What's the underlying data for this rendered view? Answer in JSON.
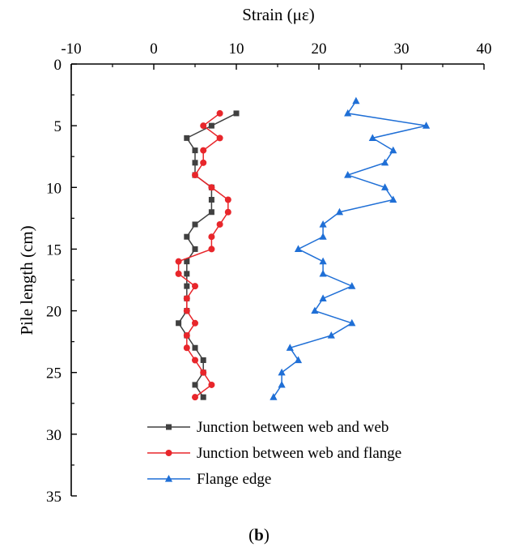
{
  "chart_data": {
    "type": "line",
    "xlabel": "Strain (με)",
    "ylabel": "Pile length (cm)",
    "xlim": [
      -10,
      40
    ],
    "ylim": [
      0,
      35
    ],
    "x_ticks": [
      "-10",
      "0",
      "10",
      "20",
      "30",
      "40"
    ],
    "y_ticks": [
      "0",
      "5",
      "10",
      "15",
      "20",
      "25",
      "30",
      "35"
    ],
    "x_axis_position": "top",
    "y_axis_inverted": true,
    "grid": false,
    "legend_position": "bottom-center",
    "caption_prefix": "(",
    "caption_letter": "b",
    "caption_suffix": ")",
    "series": [
      {
        "name": "Junction between web and web",
        "color": "#404040",
        "marker": "square",
        "points": [
          [
            10,
            4
          ],
          [
            7,
            5
          ],
          [
            4,
            6
          ],
          [
            5,
            7
          ],
          [
            5,
            8
          ],
          [
            5,
            9
          ],
          [
            7,
            10
          ],
          [
            7,
            11
          ],
          [
            7,
            12
          ],
          [
            5,
            13
          ],
          [
            4,
            14
          ],
          [
            5,
            15
          ],
          [
            4,
            16
          ],
          [
            4,
            17
          ],
          [
            4,
            18
          ],
          [
            4,
            19
          ],
          [
            4,
            20
          ],
          [
            3,
            21
          ],
          [
            4,
            22
          ],
          [
            5,
            23
          ],
          [
            6,
            24
          ],
          [
            6,
            25
          ],
          [
            5,
            26
          ],
          [
            6,
            27
          ]
        ]
      },
      {
        "name": "Junction between web and flange",
        "color": "#e8262b",
        "marker": "circle",
        "points": [
          [
            8,
            4
          ],
          [
            6,
            5
          ],
          [
            8,
            6
          ],
          [
            6,
            7
          ],
          [
            6,
            8
          ],
          [
            5,
            9
          ],
          [
            7,
            10
          ],
          [
            9,
            11
          ],
          [
            9,
            12
          ],
          [
            8,
            13
          ],
          [
            7,
            14
          ],
          [
            7,
            15
          ],
          [
            3,
            16
          ],
          [
            3,
            17
          ],
          [
            5,
            18
          ],
          [
            4,
            19
          ],
          [
            4,
            20
          ],
          [
            5,
            21
          ],
          [
            4,
            22
          ],
          [
            4,
            23
          ],
          [
            5,
            24
          ],
          [
            6,
            25
          ],
          [
            7,
            26
          ],
          [
            5,
            27
          ]
        ]
      },
      {
        "name": "Flange edge",
        "color": "#1f6fd6",
        "marker": "triangle",
        "points": [
          [
            24.5,
            3
          ],
          [
            23.5,
            4
          ],
          [
            33,
            5
          ],
          [
            26.5,
            6
          ],
          [
            29,
            7
          ],
          [
            28,
            8
          ],
          [
            23.5,
            9
          ],
          [
            28,
            10
          ],
          [
            29,
            11
          ],
          [
            22.5,
            12
          ],
          [
            20.5,
            13
          ],
          [
            20.5,
            14
          ],
          [
            17.5,
            15
          ],
          [
            20.5,
            16
          ],
          [
            20.5,
            17
          ],
          [
            24,
            18
          ],
          [
            20.5,
            19
          ],
          [
            19.5,
            20
          ],
          [
            24,
            21
          ],
          [
            21.5,
            22
          ],
          [
            16.5,
            23
          ],
          [
            17.5,
            24
          ],
          [
            15.5,
            25
          ],
          [
            15.5,
            26
          ],
          [
            14.5,
            27
          ]
        ]
      }
    ]
  }
}
